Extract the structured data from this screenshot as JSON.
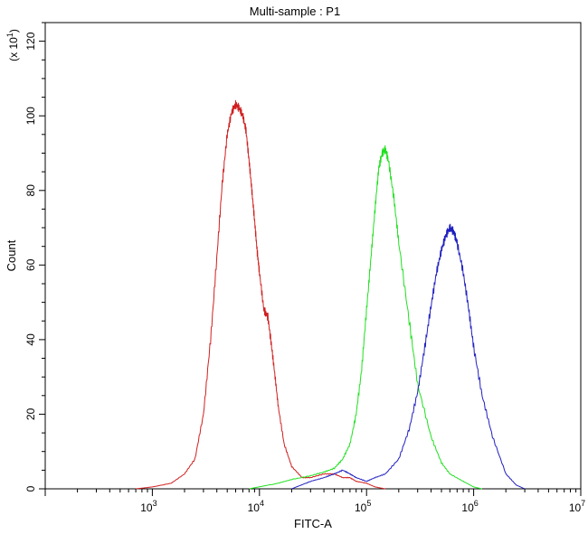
{
  "chart_data": {
    "type": "line",
    "title": "Multi-sample : P1",
    "xlabel": "FITC-A",
    "ylabel": "Count",
    "y_multiplier_label": "(x 10",
    "y_multiplier_exp": "1",
    "y_multiplier_close": ")",
    "x_scale": "log",
    "xlim": [
      100,
      10000000
    ],
    "ylim": [
      0,
      125
    ],
    "x_ticks": [
      {
        "base": "10",
        "exp": "3",
        "value": 1000
      },
      {
        "base": "10",
        "exp": "4",
        "value": 10000
      },
      {
        "base": "10",
        "exp": "5",
        "value": 100000
      },
      {
        "base": "10",
        "exp": "6",
        "value": 1000000
      },
      {
        "base": "10",
        "exp": "7",
        "value": 10000000
      }
    ],
    "y_ticks": [
      "0",
      "20",
      "40",
      "60",
      "80",
      "100",
      "120"
    ],
    "grid": false,
    "series": [
      {
        "color": "#d02020",
        "x": [
          700,
          1000,
          1500,
          2000,
          2500,
          3000,
          3500,
          4000,
          4500,
          5000,
          5500,
          6000,
          6500,
          7000,
          7500,
          8000,
          8500,
          9000,
          9500,
          10000,
          11000,
          12000,
          13000,
          14000,
          15000,
          17000,
          20000,
          25000,
          30000,
          40000,
          50000,
          60000,
          70000,
          80000,
          100000,
          120000,
          150000
        ],
        "y": [
          0,
          0.5,
          1.5,
          4,
          8,
          20,
          40,
          62,
          82,
          95,
          101,
          103,
          102,
          100,
          96,
          88,
          80,
          72,
          64,
          58,
          48,
          46,
          38,
          30,
          22,
          12,
          6,
          3,
          3,
          4,
          4,
          3,
          3,
          2,
          1.5,
          0.5,
          0
        ]
      },
      {
        "color": "#20e020",
        "x": [
          8000,
          15000,
          20000,
          30000,
          40000,
          50000,
          60000,
          70000,
          80000,
          90000,
          100000,
          110000,
          120000,
          130000,
          140000,
          150000,
          160000,
          180000,
          200000,
          250000,
          300000,
          400000,
          500000,
          600000,
          800000,
          1000000,
          1200000
        ],
        "y": [
          0,
          1.5,
          2.5,
          3.5,
          4.5,
          5.5,
          8,
          12,
          20,
          32,
          48,
          62,
          75,
          86,
          90,
          91,
          88,
          78,
          66,
          45,
          28,
          14,
          7,
          4,
          2,
          0.5,
          0
        ]
      },
      {
        "color": "#2020c0",
        "x": [
          20000,
          30000,
          40000,
          50000,
          60000,
          70000,
          80000,
          100000,
          120000,
          150000,
          200000,
          250000,
          300000,
          350000,
          400000,
          450000,
          500000,
          550000,
          600000,
          650000,
          700000,
          800000,
          900000,
          1000000,
          1200000,
          1500000,
          2000000,
          2500000,
          3000000
        ],
        "y": [
          0,
          2,
          3,
          4,
          5,
          4,
          3,
          2,
          3,
          4,
          8,
          16,
          26,
          38,
          49,
          58,
          64,
          68,
          70,
          69,
          66,
          58,
          48,
          38,
          25,
          14,
          4,
          1,
          0
        ]
      }
    ]
  }
}
